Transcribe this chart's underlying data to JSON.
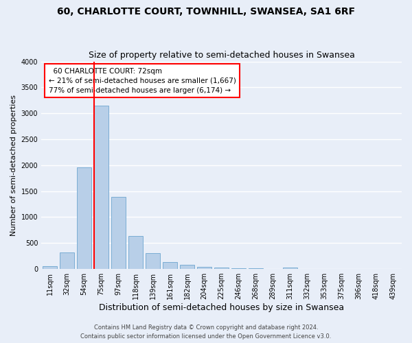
{
  "title": "60, CHARLOTTE COURT, TOWNHILL, SWANSEA, SA1 6RF",
  "subtitle": "Size of property relative to semi-detached houses in Swansea",
  "xlabel": "Distribution of semi-detached houses by size in Swansea",
  "ylabel": "Number of semi-detached properties",
  "categories": [
    "11sqm",
    "32sqm",
    "54sqm",
    "75sqm",
    "97sqm",
    "118sqm",
    "139sqm",
    "161sqm",
    "182sqm",
    "204sqm",
    "225sqm",
    "246sqm",
    "268sqm",
    "289sqm",
    "311sqm",
    "332sqm",
    "353sqm",
    "375sqm",
    "396sqm",
    "418sqm",
    "439sqm"
  ],
  "values": [
    50,
    320,
    1960,
    3150,
    1390,
    640,
    305,
    130,
    75,
    45,
    30,
    20,
    10,
    5,
    30,
    0,
    0,
    0,
    0,
    0,
    0
  ],
  "bar_color": "#b8cfe8",
  "bar_edge_color": "#7aadd4",
  "vline_color": "red",
  "annotation_title": "60 CHARLOTTE COURT: 72sqm",
  "annotation_line1": "← 21% of semi-detached houses are smaller (1,667)",
  "annotation_line2": "77% of semi-detached houses are larger (6,174) →",
  "annotation_box_color": "white",
  "annotation_box_edge": "red",
  "ylim": [
    0,
    4000
  ],
  "yticks": [
    0,
    500,
    1000,
    1500,
    2000,
    2500,
    3000,
    3500,
    4000
  ],
  "footer1": "Contains HM Land Registry data © Crown copyright and database right 2024.",
  "footer2": "Contains public sector information licensed under the Open Government Licence v3.0.",
  "bg_color": "#e8eef8",
  "grid_color": "#ffffff",
  "title_fontsize": 10,
  "subtitle_fontsize": 9,
  "ylabel_fontsize": 8,
  "xlabel_fontsize": 9,
  "tick_fontsize": 7,
  "annot_fontsize": 7.5,
  "footer_fontsize": 6
}
